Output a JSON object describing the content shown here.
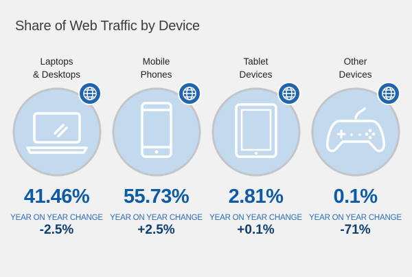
{
  "title": "Share of Web Traffic by Device",
  "colors": {
    "circle_fill": "#c3d9ee",
    "circle_stroke": "#c2c6cb",
    "badge": "#1f64ad",
    "value": "#0d5aa7",
    "yoy_label": "#2a6db8",
    "change": "#0d3e6f"
  },
  "chart_data": {
    "type": "table",
    "title": "Share of Web Traffic by Device",
    "items": [
      {
        "label": "Laptops\n& Desktops",
        "icon": "laptop-icon",
        "share": "41.46%",
        "share_value": 41.46,
        "change_label": "YEAR ON YEAR CHANGE",
        "change": "-2.5%"
      },
      {
        "label": "Mobile\nPhones",
        "icon": "mobile-phone-icon",
        "share": "55.73%",
        "share_value": 55.73,
        "change_label": "YEAR ON YEAR CHANGE",
        "change": "+2.5%"
      },
      {
        "label": "Tablet\nDevices",
        "icon": "tablet-icon",
        "share": "2.81%",
        "share_value": 2.81,
        "change_label": "YEAR ON YEAR CHANGE",
        "change": "+0.1%"
      },
      {
        "label": "Other\nDevices",
        "icon": "game-controller-icon",
        "share": "0.1%",
        "share_value": 0.1,
        "change_label": "YEAR ON YEAR CHANGE",
        "change": "-71%"
      }
    ]
  }
}
